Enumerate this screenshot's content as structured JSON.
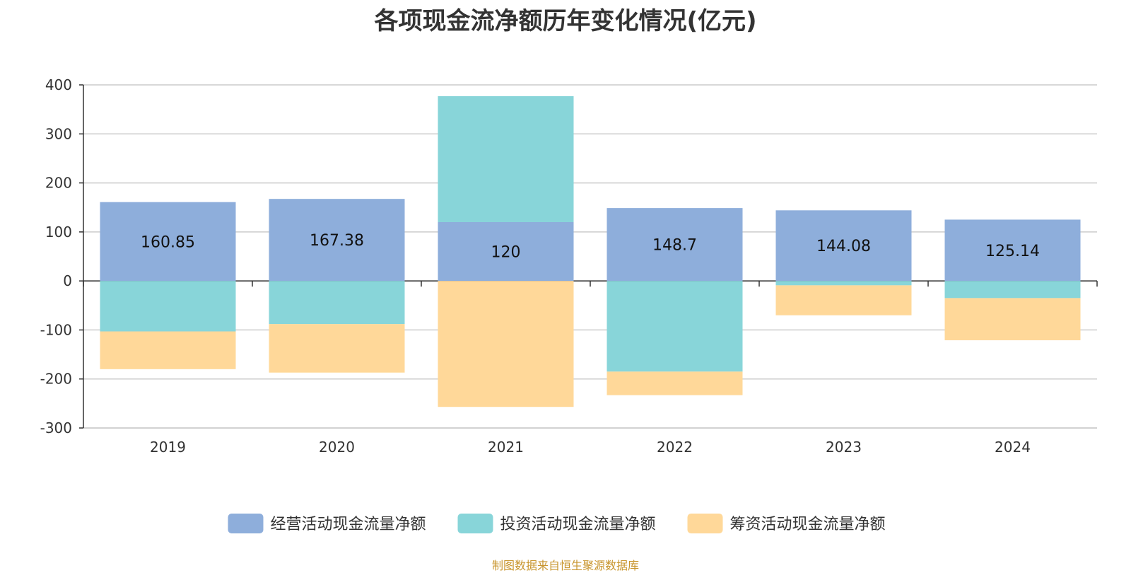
{
  "chart_data": {
    "type": "bar",
    "stacked": true,
    "title": "各项现金流净额历年变化情况(亿元)",
    "categories": [
      "2019",
      "2020",
      "2021",
      "2022",
      "2023",
      "2024"
    ],
    "ylim": [
      -300,
      400
    ],
    "yticks": [
      400,
      300,
      200,
      100,
      0,
      -100,
      -200,
      -300
    ],
    "grid": true,
    "legend_position": "bottom",
    "series": [
      {
        "name": "经营活动现金流量净额",
        "color": "#8eaedb",
        "values": [
          160.85,
          167.38,
          120,
          148.7,
          144.08,
          125.14
        ]
      },
      {
        "name": "投资活动现金流量净额",
        "color": "#88d5d9",
        "values": [
          -103,
          -88,
          257,
          -185,
          -9,
          -35
        ]
      },
      {
        "name": "筹资活动现金流量净额",
        "color": "#ffd899",
        "values": [
          -77,
          -99,
          -257,
          -48,
          -61,
          -86
        ]
      }
    ],
    "data_labels": [
      "160.85",
      "167.38",
      "120",
      "148.7",
      "144.08",
      "125.14"
    ]
  },
  "footer": {
    "source": "制图数据来自恒生聚源数据库"
  }
}
